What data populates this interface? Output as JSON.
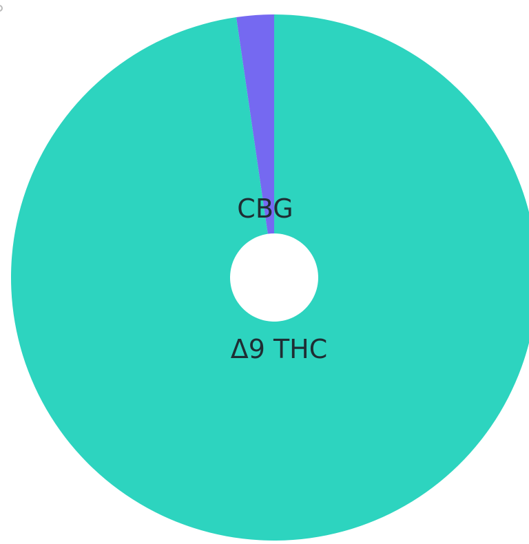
{
  "chart_data": {
    "type": "pie",
    "subtype": "donut",
    "slices": [
      {
        "label": "CBG",
        "value": 2.3,
        "color": "#7569f1"
      },
      {
        "label": "Δ9 THC",
        "value": 97.7,
        "color": "#2dd4bf"
      }
    ],
    "start": "top",
    "direction": "counter-clockwise",
    "legend": "none",
    "background": "#ffffff"
  }
}
